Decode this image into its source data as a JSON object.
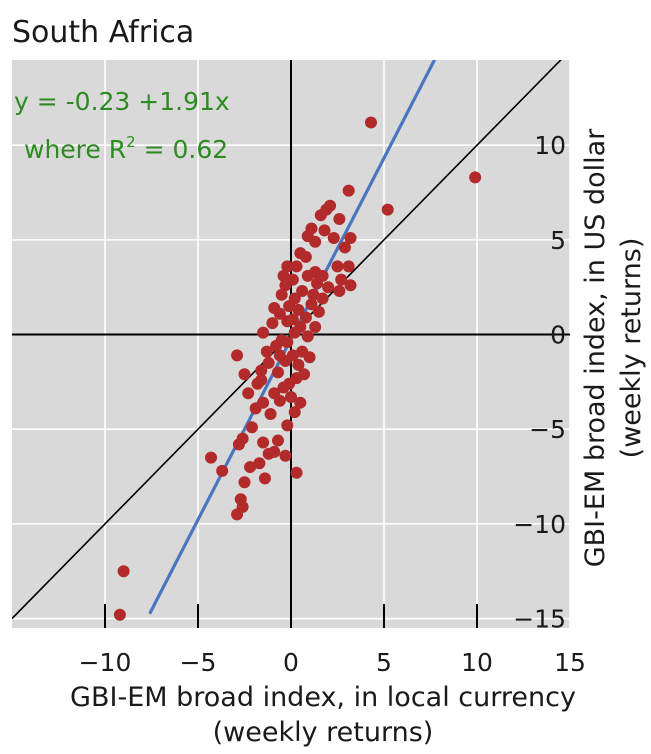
{
  "chart_data": {
    "type": "scatter",
    "title": "South Africa",
    "xlabel": "GBI-EM broad index, in local currency",
    "xlabel_sub": "(weekly returns)",
    "ylabel": "GBI-EM broad index, in US dollar",
    "ylabel_sub": "(weekly returns)",
    "xlim": [
      -15,
      15
    ],
    "ylim": [
      -15.5,
      14.5
    ],
    "x_ticks": [
      -10,
      -5,
      0,
      5,
      10,
      15
    ],
    "x_tick_labels": [
      "−10",
      "−5",
      "0",
      "5",
      "10",
      "15"
    ],
    "y_ticks": [
      -15,
      -10,
      -5,
      0,
      5,
      10
    ],
    "y_tick_labels": [
      "−15",
      "−10",
      "−5",
      "0",
      "5",
      "10"
    ],
    "grid": true,
    "background": "#d9d9d9",
    "point_color": "#b22a2a",
    "fit_line_color": "#4a76c0",
    "equation": {
      "line1": "y = -0.23 +1.91x",
      "line2_prefix": "where R",
      "line2_sup": "2",
      "line2_suffix": " = 0.62",
      "color": "#2e8b22"
    },
    "fit_line": {
      "intercept": -0.23,
      "slope": 1.91
    },
    "reference_line": {
      "intercept": 0,
      "slope": 1
    },
    "points": [
      [
        -9,
        -12.5
      ],
      [
        -9.2,
        -14.8
      ],
      [
        -4.3,
        -6.5
      ],
      [
        -3.7,
        -7.2
      ],
      [
        -2.5,
        -7.8
      ],
      [
        -2.7,
        -8.7
      ],
      [
        -2.6,
        -9.1
      ],
      [
        -2.9,
        -9.5
      ],
      [
        -1.4,
        -7.6
      ],
      [
        -2.2,
        -7
      ],
      [
        -1.7,
        -6.8
      ],
      [
        -2.6,
        -5.5
      ],
      [
        -2.8,
        -5.8
      ],
      [
        -2.1,
        -4.9
      ],
      [
        -1.5,
        -5.7
      ],
      [
        -1.2,
        -6.3
      ],
      [
        -0.9,
        -6.2
      ],
      [
        -0.7,
        -5.6
      ],
      [
        -0.3,
        -6.4
      ],
      [
        -0.2,
        -4.8
      ],
      [
        0.3,
        -7.3
      ],
      [
        -2.5,
        -2.1
      ],
      [
        -1.6,
        -1.9
      ],
      [
        -1.8,
        -2.6
      ],
      [
        -2.9,
        -1.1
      ],
      [
        -0.6,
        -3.5
      ],
      [
        -1.1,
        -4.2
      ],
      [
        -0.9,
        -3.1
      ],
      [
        -1.5,
        -3.6
      ],
      [
        -0.4,
        -2.8
      ],
      [
        -0.7,
        -2
      ],
      [
        -1.2,
        -1.5
      ],
      [
        -1.3,
        -0.9
      ],
      [
        -0.8,
        -0.6
      ],
      [
        -0.5,
        -0.3
      ],
      [
        -1.5,
        0.1
      ],
      [
        -1,
        0.6
      ],
      [
        -0.9,
        1.4
      ],
      [
        -0.6,
        1.1
      ],
      [
        -0.5,
        2.1
      ],
      [
        -0.3,
        2.6
      ],
      [
        -0.4,
        3.1
      ],
      [
        -0.2,
        3.6
      ],
      [
        0.1,
        2.9
      ],
      [
        0.3,
        3.6
      ],
      [
        0.5,
        4.3
      ],
      [
        0.8,
        4.1
      ],
      [
        1.1,
        5.6
      ],
      [
        0.9,
        5.2
      ],
      [
        1.3,
        4.9
      ],
      [
        1.8,
        5.5
      ],
      [
        1.6,
        6.3
      ],
      [
        1.9,
        6.6
      ],
      [
        2.1,
        6.8
      ],
      [
        2.3,
        5.1
      ],
      [
        2.6,
        6.1
      ],
      [
        3.1,
        7.6
      ],
      [
        3.2,
        5.1
      ],
      [
        2.9,
        4.6
      ],
      [
        2.5,
        3.6
      ],
      [
        3.1,
        3.6
      ],
      [
        2.7,
        2.9
      ],
      [
        3.2,
        2.6
      ],
      [
        2.6,
        2.3
      ],
      [
        1.7,
        3.1
      ],
      [
        1.3,
        3.3
      ],
      [
        0.9,
        3.1
      ],
      [
        1.2,
        2.1
      ],
      [
        0.6,
        2.3
      ],
      [
        0.2,
        1.9
      ],
      [
        -0.1,
        1.5
      ],
      [
        0.4,
        1.3
      ],
      [
        0.8,
        0.9
      ],
      [
        1.1,
        1.6
      ],
      [
        0.9,
        -0.1
      ],
      [
        0.5,
        0.4
      ],
      [
        0.2,
        0.1
      ],
      [
        -0.2,
        -0.4
      ],
      [
        0.1,
        -1.1
      ],
      [
        0.4,
        -1.6
      ],
      [
        0.6,
        -0.9
      ],
      [
        0.3,
        -2.3
      ],
      [
        -0.1,
        -2.6
      ],
      [
        0,
        -3.3
      ],
      [
        0.2,
        -4.1
      ],
      [
        0.5,
        -3.6
      ],
      [
        0.7,
        -2.1
      ],
      [
        1,
        -1.2
      ],
      [
        1.3,
        0.4
      ],
      [
        1.5,
        1.2
      ],
      [
        -0.3,
        -1.4
      ],
      [
        -0.6,
        -1.1
      ],
      [
        -0.2,
        0.7
      ],
      [
        0.1,
        0.8
      ],
      [
        1.7,
        1.9
      ],
      [
        2,
        2.5
      ],
      [
        1.4,
        2.7
      ],
      [
        -1.9,
        -3.9
      ],
      [
        -2.3,
        -3.1
      ],
      [
        -1.6,
        -2.4
      ],
      [
        4.3,
        11.2
      ],
      [
        5.2,
        6.6
      ],
      [
        9.9,
        8.3
      ]
    ]
  }
}
